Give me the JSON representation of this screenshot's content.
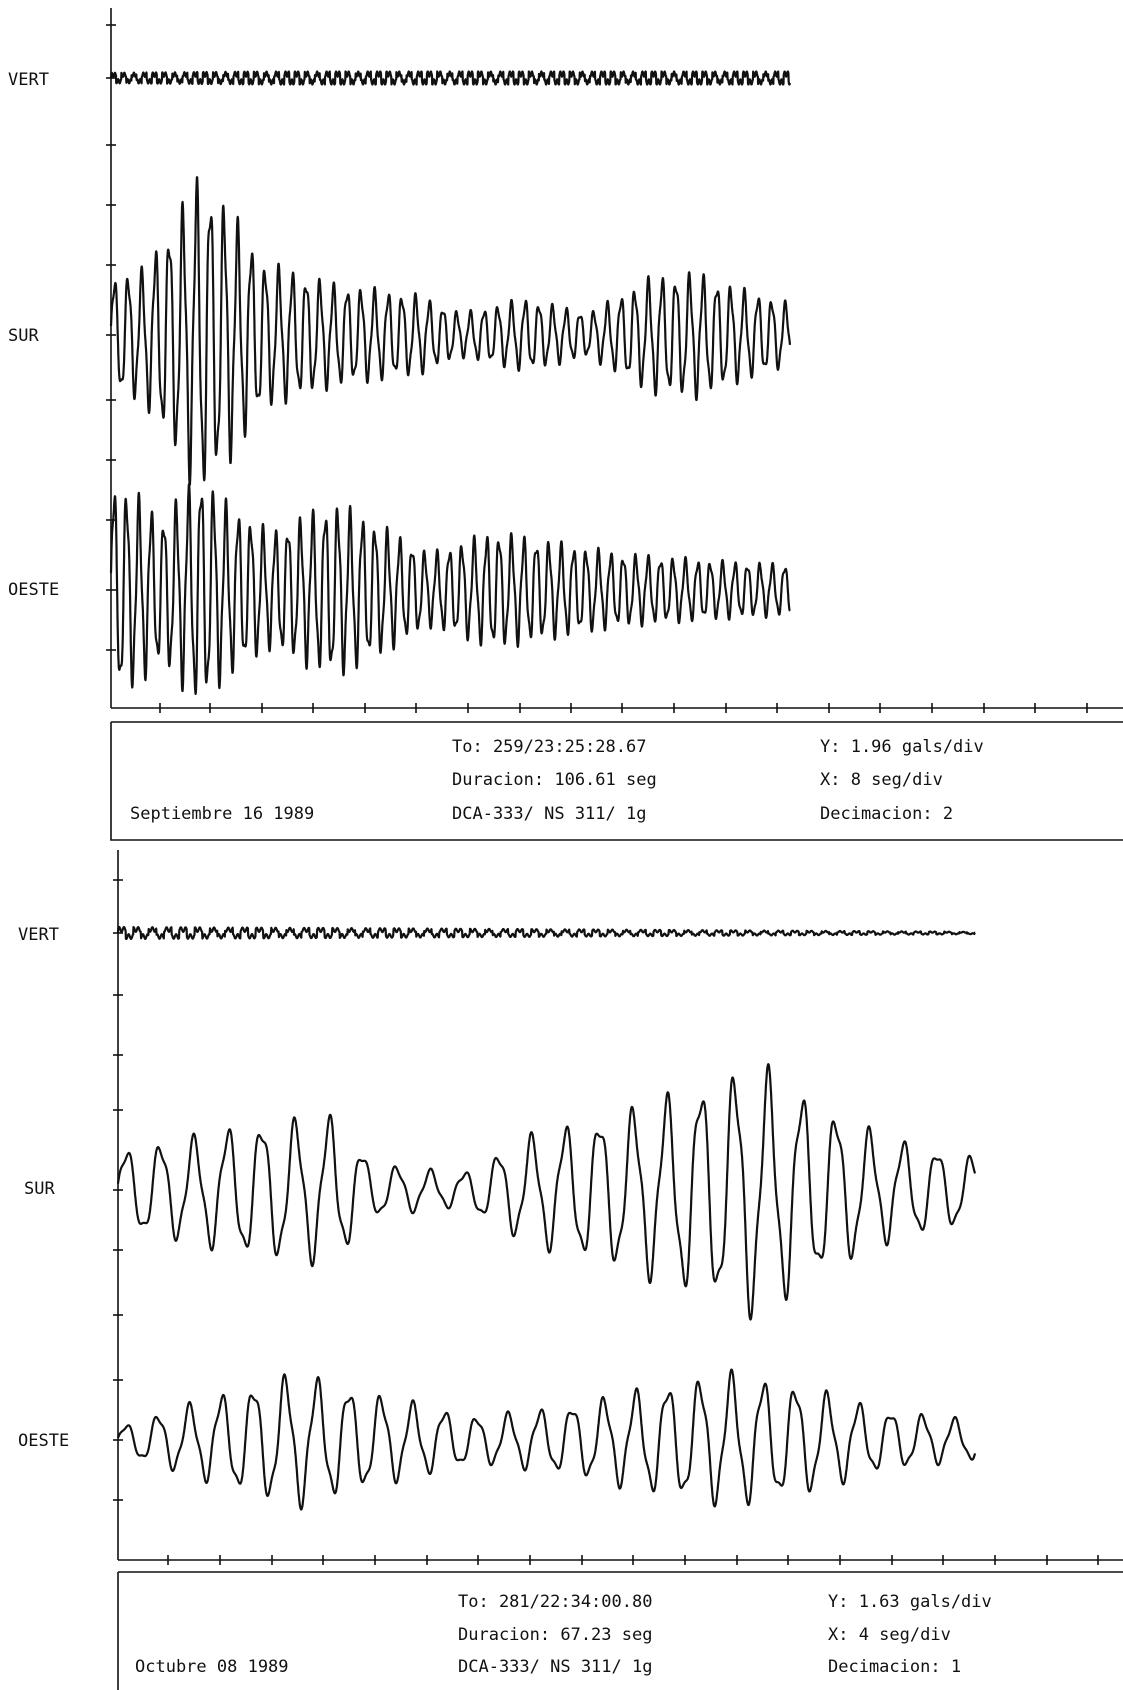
{
  "chart_data": [
    {
      "type": "line",
      "channels": [
        "VERT",
        "SUR",
        "OESTE"
      ],
      "info": {
        "date": "Septiembre 16 1989",
        "to": "To: 259/23:25:28.67",
        "duracion": "Duracion: 106.61 seg",
        "instrument": "DCA-333/ NS 311/ 1g",
        "y_scale": "Y: 1.96 gals/div",
        "x_scale": "X: 8 seg/div",
        "decimacion": "Decimacion: 2"
      },
      "series": [
        {
          "channel": "VERT",
          "env": [
            [
              0,
              0.08
            ],
            [
              25,
              0.1
            ],
            [
              100,
              0.1
            ]
          ],
          "period": 1.6,
          "duration_s": 106.61
        },
        {
          "channel": "SUR",
          "env": [
            [
              0,
              0.8
            ],
            [
              5,
              0.9
            ],
            [
              10,
              1.6
            ],
            [
              14,
              2.2
            ],
            [
              18,
              1.8
            ],
            [
              24,
              1.0
            ],
            [
              35,
              0.7
            ],
            [
              48,
              0.55
            ],
            [
              55,
              0.3
            ],
            [
              65,
              0.5
            ],
            [
              75,
              0.3
            ],
            [
              85,
              0.8
            ],
            [
              92,
              0.85
            ],
            [
              100,
              0.6
            ],
            [
              106,
              0.45
            ]
          ],
          "period": 2.15,
          "duration_s": 106.61
        },
        {
          "channel": "OESTE",
          "env": [
            [
              0,
              1.5
            ],
            [
              4,
              1.3
            ],
            [
              8,
              1.0
            ],
            [
              14,
              1.6
            ],
            [
              18,
              1.2
            ],
            [
              25,
              0.8
            ],
            [
              35,
              1.2
            ],
            [
              40,
              1.0
            ],
            [
              50,
              0.5
            ],
            [
              60,
              0.8
            ],
            [
              70,
              0.65
            ],
            [
              80,
              0.5
            ],
            [
              95,
              0.4
            ],
            [
              106,
              0.35
            ]
          ],
          "period": 1.95,
          "duration_s": 106.61
        }
      ]
    },
    {
      "type": "line",
      "channels": [
        "VERT",
        "SUR",
        "OESTE"
      ],
      "info": {
        "date": "Octubre 08 1989",
        "to": "To: 281/22:34:00.80",
        "duracion": "Duracion: 67.23 seg",
        "instrument": "DCA-333/ NS 311/ 1g",
        "y_scale": "Y: 1.63 gals/div",
        "x_scale": "X: 4 seg/div",
        "decimacion": "Decimacion: 1"
      },
      "series": [
        {
          "channel": "VERT",
          "env": [
            [
              0,
              0.1
            ],
            [
              20,
              0.08
            ],
            [
              67,
              0.02
            ]
          ],
          "period": 1.2,
          "duration_s": 67.23
        },
        {
          "channel": "SUR",
          "env": [
            [
              0,
              0.6
            ],
            [
              6,
              0.8
            ],
            [
              10,
              1.0
            ],
            [
              17,
              1.1
            ],
            [
              20,
              0.4
            ],
            [
              27,
              0.25
            ],
            [
              32,
              0.8
            ],
            [
              40,
              1.2
            ],
            [
              46,
              1.6
            ],
            [
              50,
              1.9
            ],
            [
              55,
              1.3
            ],
            [
              60,
              0.8
            ],
            [
              67,
              0.5
            ]
          ],
          "period": 2.65,
          "duration_s": 67.23
        },
        {
          "channel": "OESTE",
          "env": [
            [
              0,
              0.2
            ],
            [
              5,
              0.5
            ],
            [
              10,
              0.8
            ],
            [
              14,
              1.0
            ],
            [
              20,
              0.7
            ],
            [
              28,
              0.35
            ],
            [
              35,
              0.5
            ],
            [
              42,
              0.8
            ],
            [
              48,
              1.0
            ],
            [
              54,
              0.8
            ],
            [
              60,
              0.45
            ],
            [
              67,
              0.3
            ]
          ],
          "period": 2.5,
          "duration_s": 67.23
        }
      ]
    }
  ]
}
